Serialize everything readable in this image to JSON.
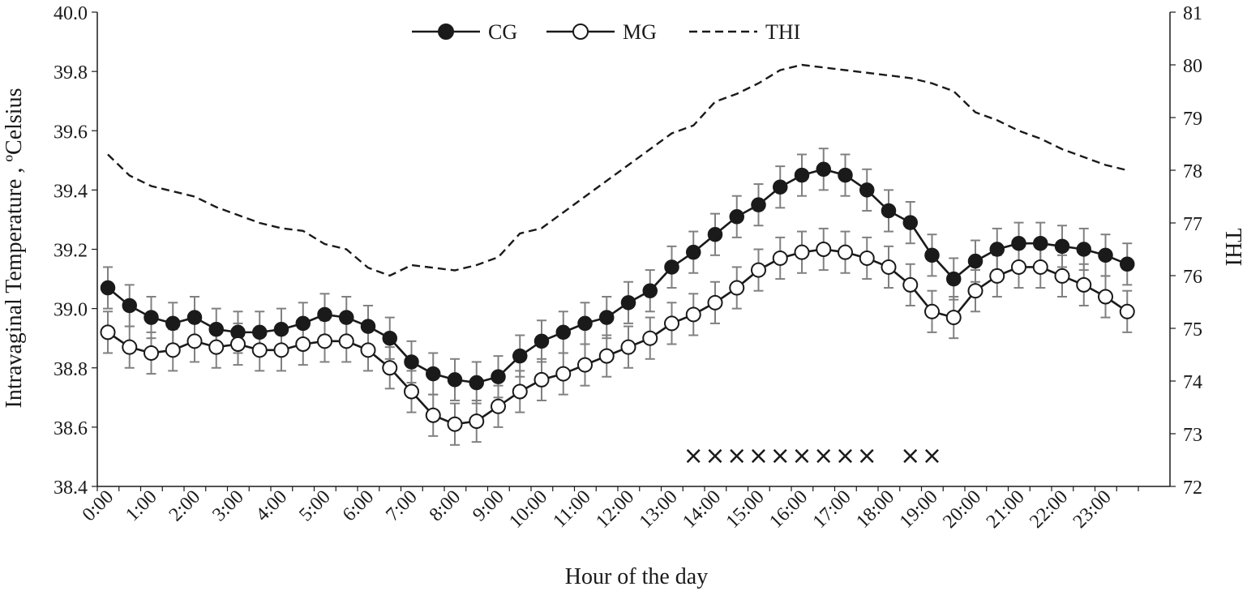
{
  "chart_data": {
    "type": "line",
    "xlabel": "Hour of the day",
    "ylabel": "Intravaginal Temperature , ºCelsius",
    "y2label": "THI",
    "ylim": [
      38.4,
      40.0
    ],
    "y2lim": [
      72,
      81
    ],
    "yticks": [
      "38.4",
      "38.6",
      "38.8",
      "39.0",
      "39.2",
      "39.4",
      "39.6",
      "39.8",
      "40.0"
    ],
    "y2ticks": [
      "72",
      "73",
      "74",
      "75",
      "76",
      "77",
      "78",
      "79",
      "80",
      "81"
    ],
    "x_ticklabels": [
      "0:00",
      "1:00",
      "2:00",
      "3:00",
      "4:00",
      "5:00",
      "6:00",
      "7:00",
      "8:00",
      "9:00",
      "10:00",
      "11:00",
      "12:00",
      "13:00",
      "14:00",
      "15:00",
      "16:00",
      "17:00",
      "18:00",
      "19:00",
      "20:00",
      "21:00",
      "22:00",
      "23:00"
    ],
    "x": [
      0,
      0.5,
      1,
      1.5,
      2,
      2.5,
      3,
      3.5,
      4,
      4.5,
      5,
      5.5,
      6,
      6.5,
      7,
      7.5,
      8,
      8.5,
      9,
      9.5,
      10,
      10.5,
      11,
      11.5,
      12,
      12.5,
      13,
      13.5,
      14,
      14.5,
      15,
      15.5,
      16,
      16.5,
      17,
      17.5,
      18,
      18.5,
      19,
      19.5,
      20,
      20.5,
      21,
      21.5,
      22,
      22.5,
      23,
      23.5
    ],
    "legend": {
      "position": "top-center",
      "entries": [
        "CG",
        "MG",
        "THI"
      ]
    },
    "grid": false,
    "series": [
      {
        "name": "CG",
        "axis": "left",
        "style": "solid-filled-markers",
        "values": [
          39.07,
          39.01,
          38.97,
          38.95,
          38.97,
          38.93,
          38.92,
          38.92,
          38.93,
          38.95,
          38.98,
          38.97,
          38.94,
          38.9,
          38.82,
          38.78,
          38.76,
          38.75,
          38.77,
          38.84,
          38.89,
          38.92,
          38.95,
          38.97,
          39.02,
          39.06,
          39.14,
          39.19,
          39.25,
          39.31,
          39.35,
          39.41,
          39.45,
          39.47,
          39.45,
          39.4,
          39.33,
          39.29,
          39.18,
          39.1,
          39.16,
          39.2,
          39.22,
          39.22,
          39.21,
          39.2,
          39.18,
          39.15
        ],
        "errors": [
          0.07,
          0.07,
          0.07,
          0.07,
          0.07,
          0.07,
          0.07,
          0.07,
          0.07,
          0.07,
          0.07,
          0.07,
          0.07,
          0.07,
          0.07,
          0.07,
          0.07,
          0.07,
          0.07,
          0.07,
          0.07,
          0.07,
          0.07,
          0.07,
          0.07,
          0.07,
          0.07,
          0.07,
          0.07,
          0.07,
          0.07,
          0.07,
          0.07,
          0.07,
          0.07,
          0.07,
          0.07,
          0.07,
          0.07,
          0.07,
          0.07,
          0.07,
          0.07,
          0.07,
          0.07,
          0.07,
          0.07,
          0.07
        ]
      },
      {
        "name": "MG",
        "axis": "left",
        "style": "solid-open-markers",
        "values": [
          38.92,
          38.87,
          38.85,
          38.86,
          38.89,
          38.87,
          38.88,
          38.86,
          38.86,
          38.88,
          38.89,
          38.89,
          38.86,
          38.8,
          38.72,
          38.64,
          38.61,
          38.62,
          38.67,
          38.72,
          38.76,
          38.78,
          38.81,
          38.84,
          38.87,
          38.9,
          38.95,
          38.98,
          39.02,
          39.07,
          39.13,
          39.17,
          39.19,
          39.2,
          39.19,
          39.17,
          39.14,
          39.08,
          38.99,
          38.97,
          39.06,
          39.11,
          39.14,
          39.14,
          39.11,
          39.08,
          39.04,
          38.99
        ],
        "errors": [
          0.07,
          0.07,
          0.07,
          0.07,
          0.07,
          0.07,
          0.07,
          0.07,
          0.07,
          0.07,
          0.07,
          0.07,
          0.07,
          0.07,
          0.07,
          0.07,
          0.07,
          0.07,
          0.07,
          0.07,
          0.07,
          0.07,
          0.07,
          0.07,
          0.07,
          0.07,
          0.07,
          0.07,
          0.07,
          0.07,
          0.07,
          0.07,
          0.07,
          0.07,
          0.07,
          0.07,
          0.07,
          0.07,
          0.07,
          0.07,
          0.07,
          0.07,
          0.07,
          0.07,
          0.07,
          0.07,
          0.07,
          0.07
        ]
      },
      {
        "name": "THI",
        "axis": "right",
        "style": "dashed",
        "values": [
          78.3,
          77.9,
          77.7,
          77.6,
          77.5,
          77.3,
          77.15,
          77.0,
          76.9,
          76.85,
          76.6,
          76.5,
          76.15,
          76.0,
          76.2,
          76.15,
          76.1,
          76.2,
          76.35,
          76.8,
          76.9,
          77.2,
          77.5,
          77.8,
          78.1,
          78.4,
          78.7,
          78.85,
          79.3,
          79.45,
          79.65,
          79.9,
          80.0,
          79.95,
          79.9,
          79.85,
          79.8,
          79.75,
          79.65,
          79.5,
          79.1,
          78.95,
          78.75,
          78.6,
          78.4,
          78.25,
          78.1,
          78.0
        ]
      }
    ],
    "significance_marker": "×",
    "significance_x": [
      13.5,
      14,
      14.5,
      15,
      15.5,
      16,
      16.5,
      17,
      17.5,
      18.5,
      19
    ]
  }
}
